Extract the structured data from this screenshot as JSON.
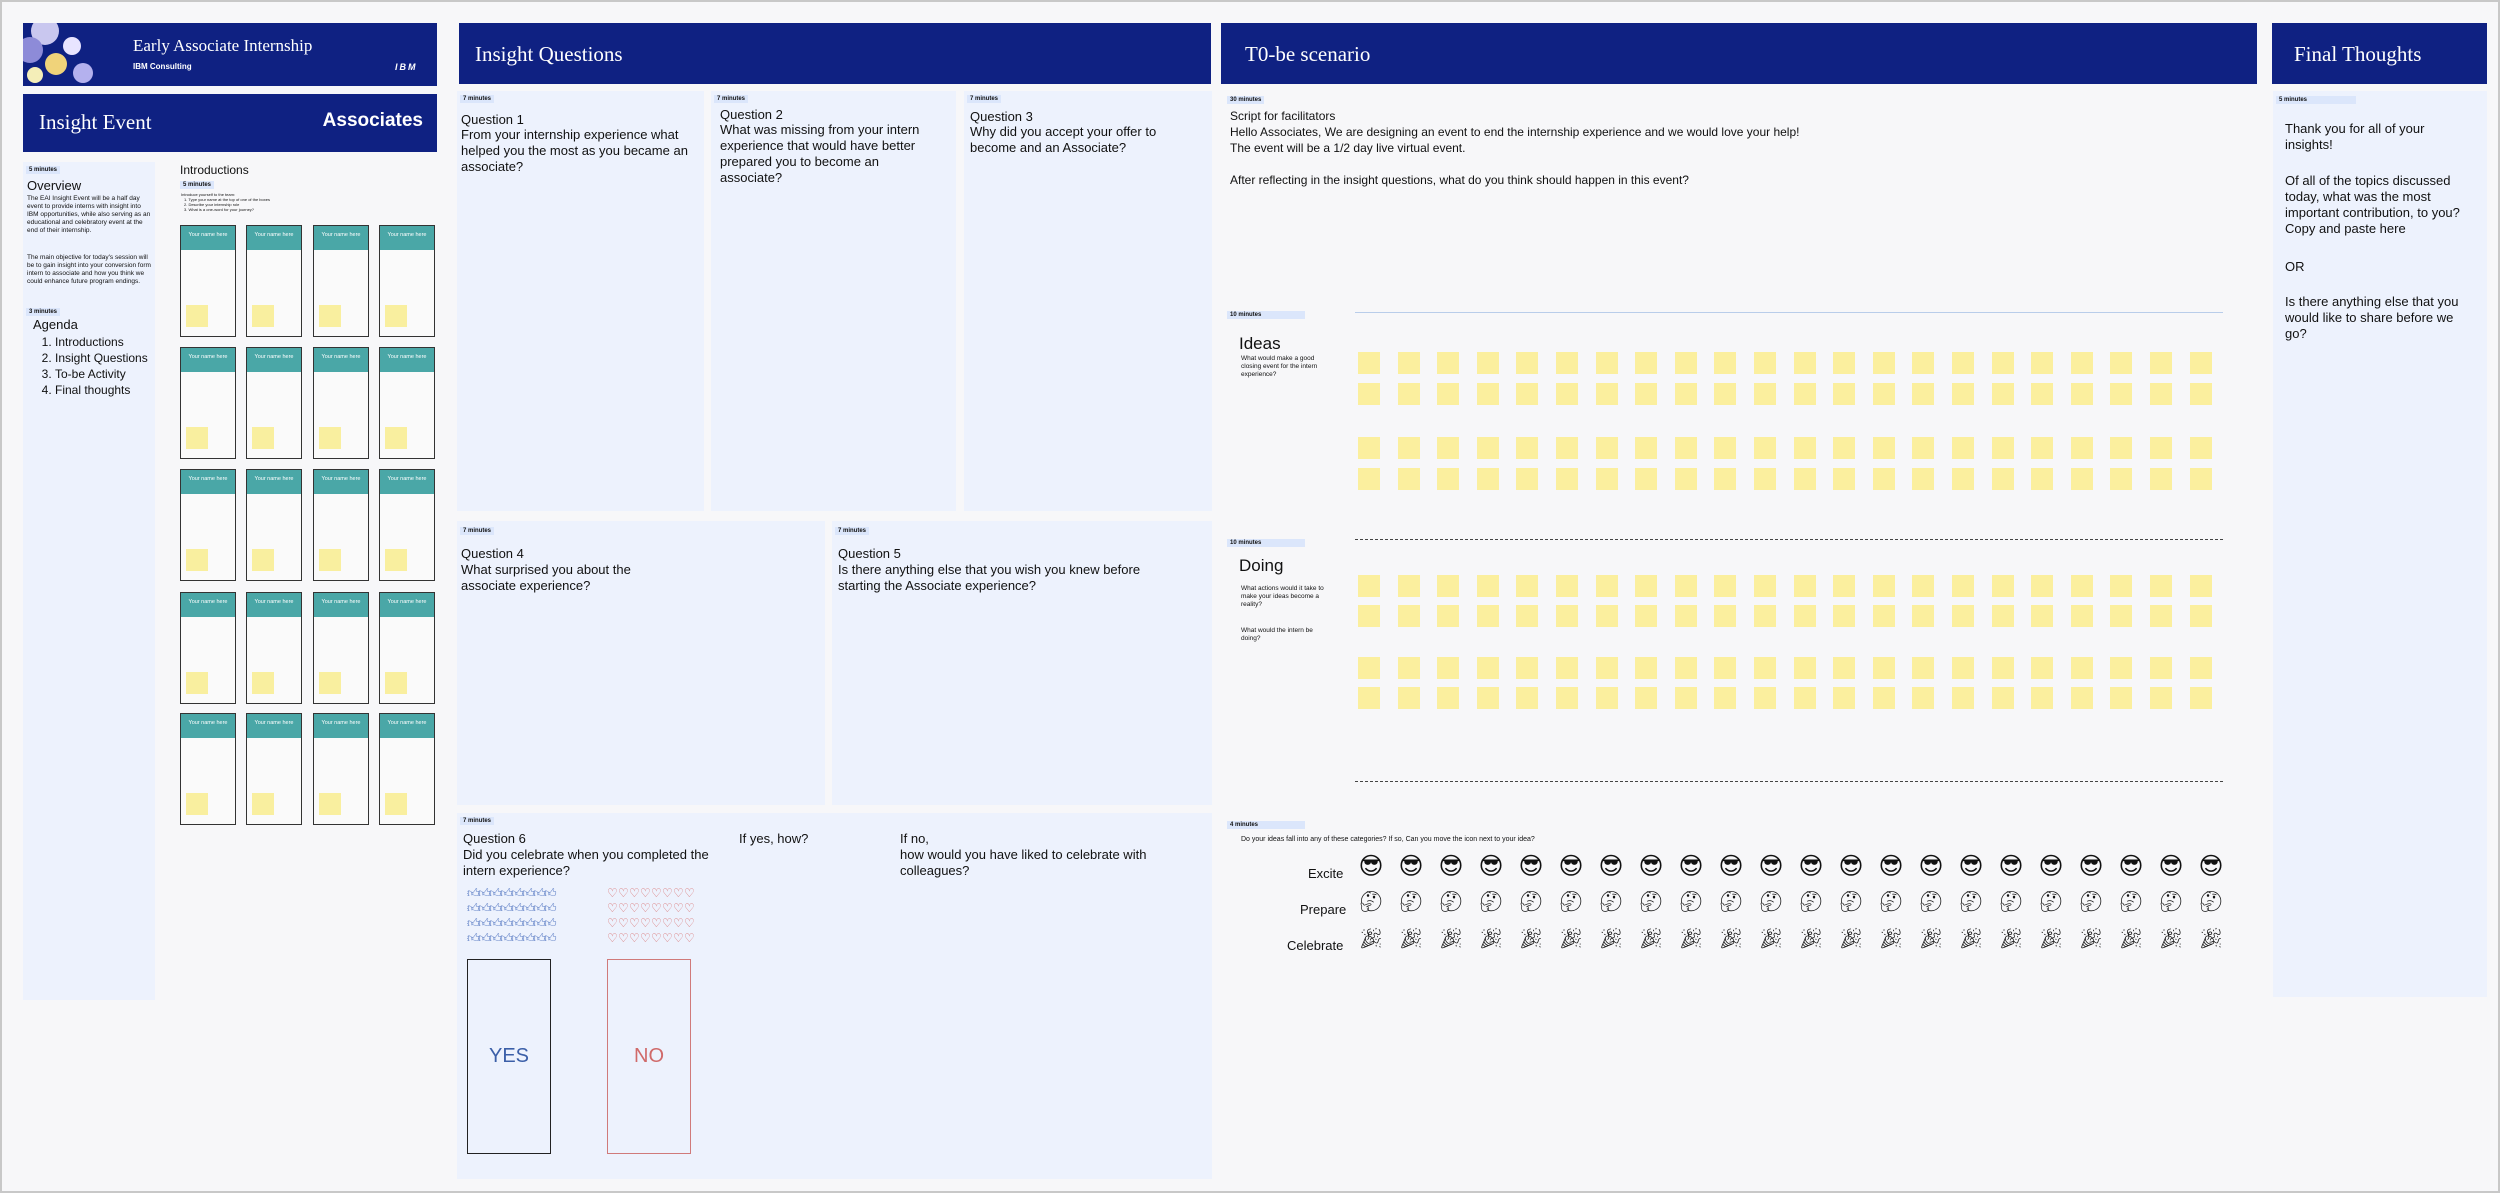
{
  "brand": {
    "title": "Early Associate Internship",
    "subtitle": "IBM Consulting",
    "logo": "IBM"
  },
  "event": {
    "left": "Insight Event",
    "right": "Associates"
  },
  "overview": {
    "timer": "5 minutes",
    "title": "Overview",
    "text1": "The EAI Insight Event will be a half day event to provide interns with insight into IBM opportunities, while also serving as an educational and celebratory event at the end of their internship.",
    "text2": "The main objective for today's session will be to gain insight into your conversion form intern to associate and how you think we could enhance future program endings."
  },
  "agenda": {
    "timer": "3 minutes",
    "title": "Agenda",
    "items": [
      "Introductions",
      "Insight Questions",
      "To-be Activity",
      "Final thoughts"
    ]
  },
  "intro": {
    "title": "Introductions",
    "timer": "5 minutes",
    "lines": [
      "Introduce yourself to the team:",
      "1. Type your name at the top of one of the boxes",
      "2. Describe your internship role",
      "3. What is a one-word for your journey?"
    ],
    "card_label": "Your name here"
  },
  "insight": {
    "header": "Insight Questions",
    "timer": "7 minutes",
    "q1": {
      "title": "Question 1",
      "text": "From your internship experience what helped you the most as you became an associate?"
    },
    "q2": {
      "title": "Question 2",
      "text": "What was missing from your intern experience that would have better prepared you to become an associate?"
    },
    "q3": {
      "title": "Question 3",
      "text": "Why did you accept your offer to become and an Associate?"
    },
    "q4": {
      "title": "Question 4",
      "text": "What surprised you about the associate experience?"
    },
    "q5": {
      "title": "Question 5",
      "text": "Is there anything else that you wish you knew before starting the Associate experience?"
    },
    "q6": {
      "title": "Question 6",
      "text": "Did you celebrate when you completed the intern experience?",
      "yes_how": "If yes, how?",
      "if_no": "If no,",
      "if_no2": "how would you have liked to celebrate with colleagues?",
      "yes": "YES",
      "no": "NO"
    }
  },
  "tobe": {
    "header": "T0-be scenario",
    "timer30": "30 minutes",
    "script_title": "Script for facilitators",
    "script1": "Hello Associates, We are designing an event to end the internship experience and we would love your help!",
    "script2": "The event will be a 1/2 day live virtual event.",
    "script3": "After reflecting in the insight questions, what do you think should happen in this event?",
    "timer10": "10 minutes",
    "ideas_title": "Ideas",
    "ideas_text": "What would make a good closing event for the intern experience?",
    "doing_title": "Doing",
    "doing_text1": "What actions would it take to make your ideas become a reality?",
    "doing_text2": "What would the intern be doing?",
    "timer4": "4 minutes",
    "cat_prompt": "Do your ideas fall into any of these categories?  If so, Can you move the icon next to your idea?",
    "excite": "Excite",
    "prepare": "Prepare",
    "celebrate": "Celebrate"
  },
  "final": {
    "header": "Final Thoughts",
    "timer": "5 minutes",
    "p1": "Thank you for all of your insights!",
    "p2": "Of all of the topics discussed today, what was the most important contribution, to you? Copy and paste here",
    "p3": "OR",
    "p4": "Is there anything else that you would like to share before we go?"
  },
  "icons": {
    "excite": "grinning-sunglasses-icon",
    "prepare": "thinking-head-icon",
    "celebrate": "party-popper-icon",
    "thumb": "thumbs-up-icon",
    "heart": "broken-heart-icon"
  }
}
